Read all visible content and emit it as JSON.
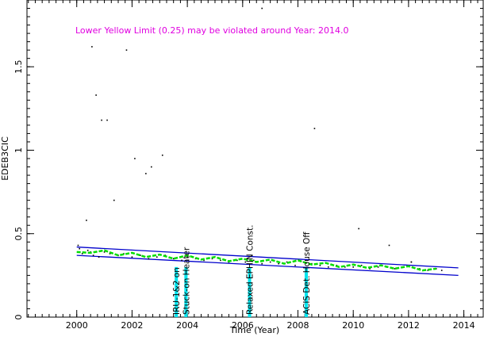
{
  "chart_data": {
    "type": "line",
    "title": "",
    "warning_text": "Lower Yellow  Limit (0.25) may be violated around Year: 2014.0",
    "xlabel": "Time (Year)",
    "ylabel": "EDEB3CIC",
    "xlim": [
      1998.2,
      2014.7
    ],
    "ylim": [
      0,
      1.9
    ],
    "x_ticks": [
      2000,
      2002,
      2004,
      2006,
      2008,
      2010,
      2012,
      2014
    ],
    "y_ticks": [
      0,
      0.5,
      1,
      1.5
    ],
    "x_tick_labels": [
      "2000",
      "2002",
      "2004",
      "2006",
      "2008",
      "2010",
      "2012",
      "2014"
    ],
    "y_tick_labels": [
      "0",
      "0.5",
      "1",
      "1.5"
    ],
    "grid": false,
    "colors": {
      "warning": "#e000e0",
      "limit_lines": "#0000cc",
      "smooth_fit": "#00dd00",
      "event_bars": "#00e5ee",
      "data_points": "#000000"
    },
    "limit_lines": [
      {
        "x": [
          2000.0,
          2013.8
        ],
        "y": [
          0.42,
          0.295
        ]
      },
      {
        "x": [
          2000.0,
          2013.8
        ],
        "y": [
          0.37,
          0.25
        ]
      }
    ],
    "smooth_fit": {
      "x": [
        2000.0,
        2000.5,
        2001.0,
        2001.5,
        2002.0,
        2002.5,
        2003.0,
        2003.5,
        2004.0,
        2004.5,
        2005.0,
        2005.5,
        2006.0,
        2006.5,
        2007.0,
        2007.5,
        2008.0,
        2008.5,
        2009.0,
        2009.5,
        2010.0,
        2010.5,
        2011.0,
        2011.5,
        2012.0,
        2012.5,
        2013.0
      ],
      "y": [
        0.39,
        0.385,
        0.4,
        0.37,
        0.385,
        0.36,
        0.375,
        0.35,
        0.37,
        0.345,
        0.36,
        0.335,
        0.35,
        0.33,
        0.345,
        0.32,
        0.34,
        0.315,
        0.325,
        0.3,
        0.315,
        0.295,
        0.31,
        0.29,
        0.305,
        0.28,
        0.29
      ]
    },
    "events": [
      {
        "label": "IRU-1&2 on",
        "x": 2003.6
      },
      {
        "label": "Stuck-on Heater",
        "x": 2003.95
      },
      {
        "label": "Relaxed EPHIN Const.",
        "x": 2006.25
      },
      {
        "label": "ACIS Det. House Off",
        "x": 2008.3
      }
    ],
    "scatter": {
      "x": [
        2000.05,
        2000.1,
        2000.2,
        2000.4,
        2000.5,
        2000.6,
        2000.8,
        2001.0,
        2001.2,
        2001.5,
        2001.7,
        2002.0,
        2002.3,
        2002.6,
        2002.9,
        2003.2,
        2003.5,
        2003.8,
        2004.0,
        2004.3,
        2004.6,
        2004.9,
        2005.2,
        2005.5,
        2005.8,
        2006.1,
        2006.4,
        2006.7,
        2007.0,
        2007.3,
        2007.6,
        2007.9,
        2008.2,
        2008.5,
        2008.8,
        2009.1,
        2009.4,
        2009.7,
        2010.0,
        2010.3,
        2010.6,
        2010.9,
        2011.2,
        2011.5,
        2011.8,
        2012.1,
        2012.4,
        2012.7,
        2013.0,
        2013.2,
        2000.35,
        2000.7,
        2001.1,
        2002.7,
        2003.1,
        2006.7,
        2008.6,
        2011.3,
        2000.55,
        2001.35,
        2000.9,
        2001.8,
        2002.1,
        2002.5,
        2010.2,
        2012.1
      ],
      "y": [
        0.43,
        0.41,
        0.38,
        0.4,
        0.39,
        0.37,
        0.36,
        0.39,
        0.38,
        0.37,
        0.38,
        0.36,
        0.37,
        0.35,
        0.36,
        0.37,
        0.35,
        0.34,
        0.36,
        0.35,
        0.34,
        0.35,
        0.34,
        0.33,
        0.34,
        0.33,
        0.34,
        0.32,
        0.33,
        0.32,
        0.33,
        0.31,
        0.33,
        0.32,
        0.31,
        0.3,
        0.31,
        0.3,
        0.3,
        0.31,
        0.29,
        0.3,
        0.3,
        0.29,
        0.3,
        0.33,
        0.29,
        0.28,
        0.29,
        0.28,
        0.58,
        1.33,
        1.18,
        0.9,
        0.97,
        1.85,
        1.13,
        0.43,
        1.62,
        0.7,
        1.18,
        1.6,
        0.95,
        0.86,
        0.53,
        0.33
      ]
    }
  }
}
